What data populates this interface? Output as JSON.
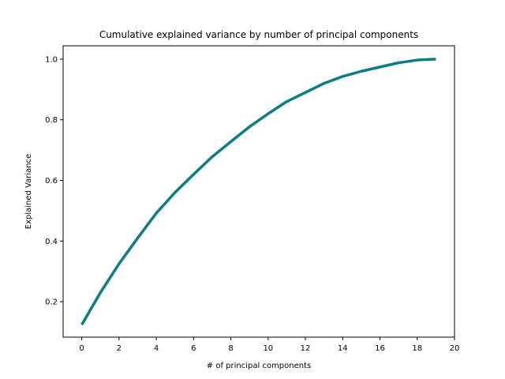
{
  "chart_data": {
    "type": "line",
    "title": "Cumulative explained variance by number of principal components",
    "xlabel": "# of principal components",
    "ylabel": "Explained Variance",
    "xlim": [
      -1,
      20
    ],
    "ylim": [
      0.083,
      1.044
    ],
    "xticks": [
      0,
      2,
      4,
      6,
      8,
      10,
      12,
      14,
      16,
      18,
      20
    ],
    "yticks": [
      0.2,
      0.4,
      0.6,
      0.8,
      1.0
    ],
    "ytick_labels": [
      "0.2",
      "0.4",
      "0.6",
      "0.8",
      "1.0"
    ],
    "grid": false,
    "series": [
      {
        "color": "#0e7c86",
        "x": [
          0,
          1,
          2,
          3,
          4,
          5,
          6,
          7,
          8,
          9,
          10,
          11,
          12,
          13,
          14,
          15,
          16,
          17,
          18,
          19
        ],
        "y": [
          0.124,
          0.23,
          0.325,
          0.41,
          0.492,
          0.56,
          0.62,
          0.678,
          0.728,
          0.777,
          0.82,
          0.86,
          0.89,
          0.92,
          0.943,
          0.96,
          0.974,
          0.988,
          0.997,
          1.0
        ]
      }
    ]
  }
}
